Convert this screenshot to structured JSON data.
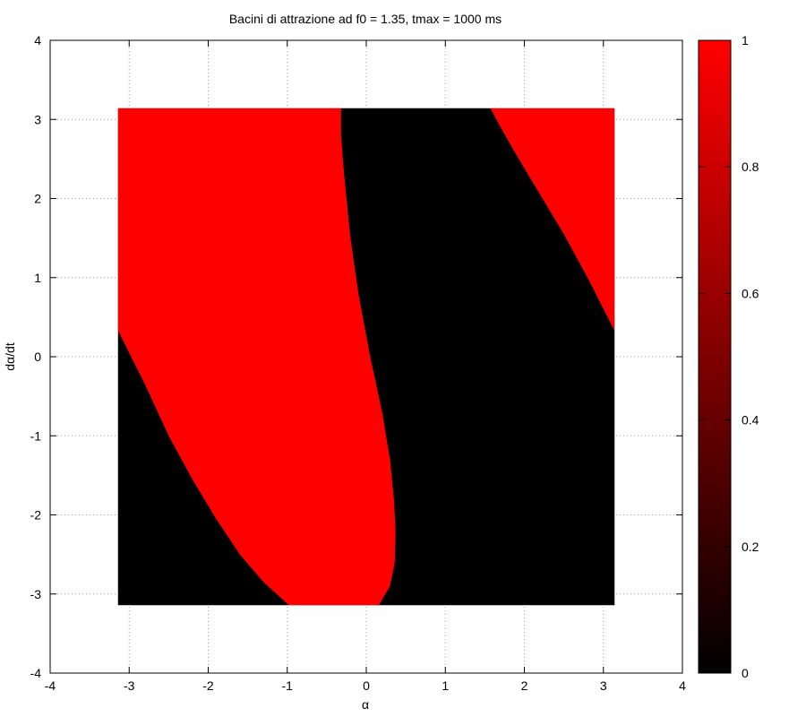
{
  "chart_data": {
    "type": "heatmap",
    "title": "Bacini di attrazione ad f0 = 1.35, tmax = 1000 ms",
    "xlabel": "α",
    "ylabel": "dα/dt",
    "xlim": [
      -4,
      4
    ],
    "ylim": [
      -4,
      4
    ],
    "xticks": [
      "-4",
      "-3",
      "-2",
      "-1",
      "0",
      "1",
      "2",
      "3",
      "4"
    ],
    "yticks": [
      "-4",
      "-3",
      "-2",
      "-1",
      "0",
      "1",
      "2",
      "3",
      "4"
    ],
    "grid": true,
    "data_domain": {
      "x": [
        -3.14159,
        3.14159
      ],
      "y": [
        -3.14159,
        3.14159
      ]
    },
    "background_value": 0,
    "regions": [
      {
        "value": 1,
        "polygon": [
          [
            -3.14,
            3.14
          ],
          [
            -0.32,
            3.14
          ],
          [
            -0.32,
            2.8
          ],
          [
            -0.28,
            2.3
          ],
          [
            -0.2,
            1.5
          ],
          [
            -0.1,
            0.8
          ],
          [
            0.05,
            0.0
          ],
          [
            0.2,
            -0.7
          ],
          [
            0.3,
            -1.3
          ],
          [
            0.35,
            -1.8
          ],
          [
            0.37,
            -2.2
          ],
          [
            0.36,
            -2.6
          ],
          [
            0.3,
            -2.9
          ],
          [
            0.16,
            -3.14
          ],
          [
            -0.98,
            -3.14
          ],
          [
            -1.3,
            -2.85
          ],
          [
            -1.6,
            -2.5
          ],
          [
            -1.9,
            -2.05
          ],
          [
            -2.2,
            -1.55
          ],
          [
            -2.5,
            -1.0
          ],
          [
            -2.8,
            -0.35
          ],
          [
            -3.14,
            0.33
          ]
        ]
      },
      {
        "value": 1,
        "polygon": [
          [
            1.57,
            3.14
          ],
          [
            3.14,
            3.14
          ],
          [
            3.14,
            0.33
          ],
          [
            2.8,
            1.0
          ],
          [
            2.5,
            1.55
          ],
          [
            2.2,
            2.05
          ],
          [
            1.9,
            2.55
          ],
          [
            1.7,
            2.9
          ]
        ]
      }
    ],
    "colorbar": {
      "range": [
        0,
        1
      ],
      "ticks": [
        "0",
        "0.2",
        "0.4",
        "0.6",
        "0.8",
        "1"
      ],
      "colors": [
        "#000000",
        "#ff0000"
      ]
    }
  }
}
